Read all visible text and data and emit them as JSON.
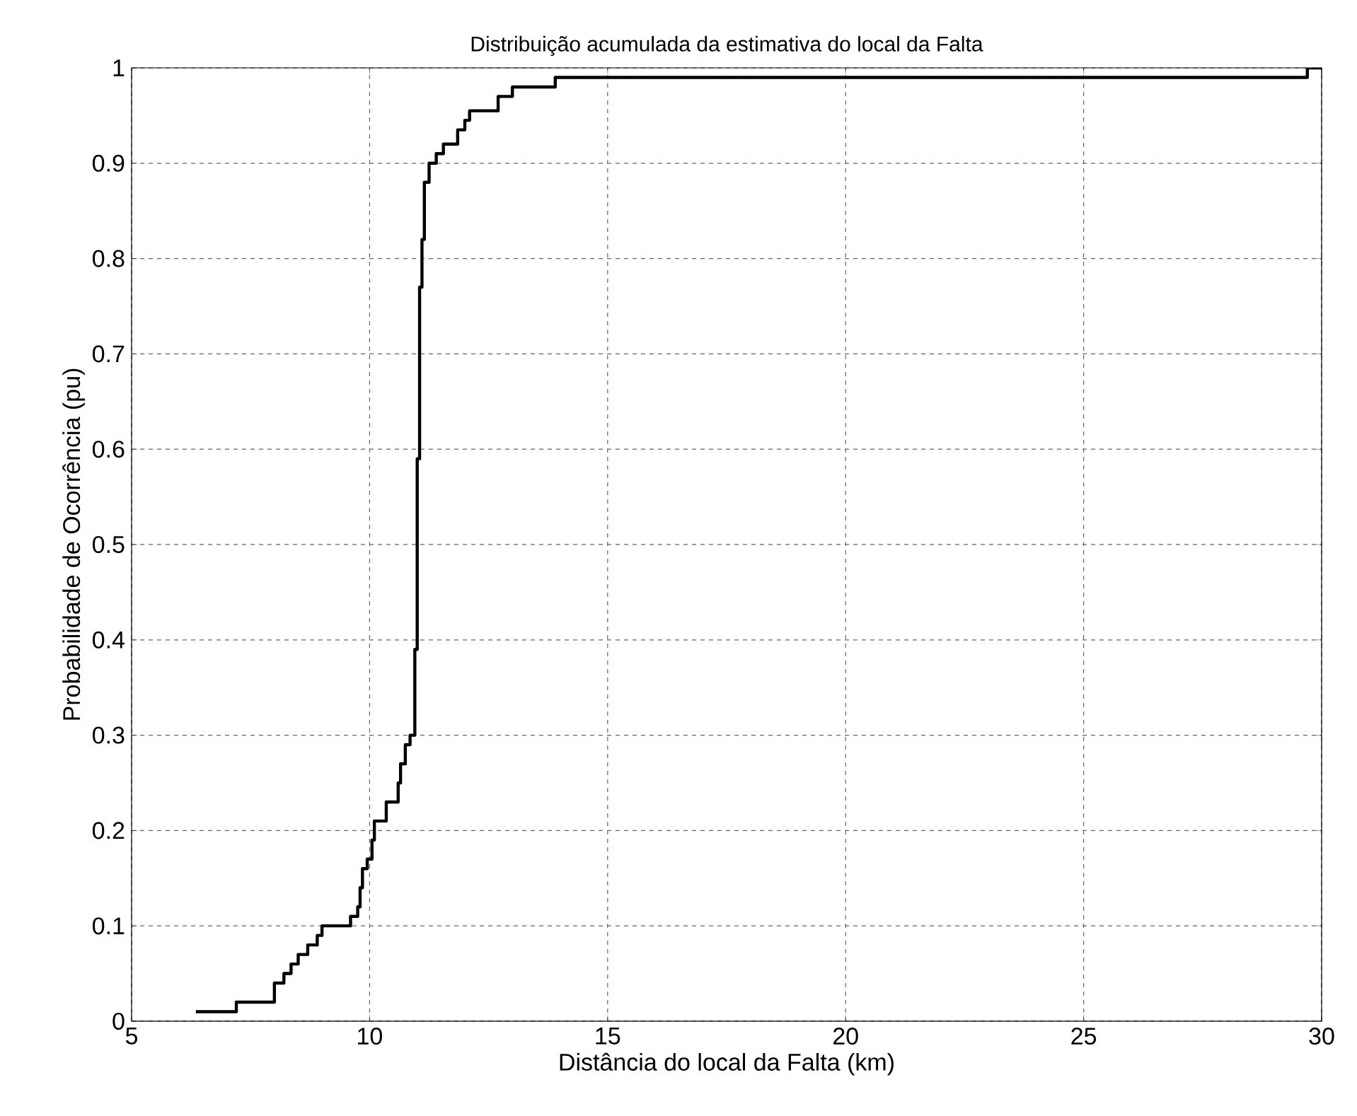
{
  "chart_data": {
    "type": "step",
    "title": "Distribuição acumulada da estimativa do local da Falta",
    "xlabel": "Distância do local da Falta (km)",
    "ylabel": "Probabilidade de Ocorrência (pu)",
    "x": [
      6.35,
      7.2,
      8.0,
      8.2,
      8.35,
      8.5,
      8.7,
      8.9,
      9.0,
      9.6,
      9.75,
      9.8,
      9.85,
      9.95,
      10.05,
      10.1,
      10.35,
      10.6,
      10.65,
      10.75,
      10.85,
      10.95,
      11.0,
      11.05,
      11.1,
      11.15,
      11.25,
      11.4,
      11.55,
      11.85,
      12.0,
      12.1,
      12.7,
      13.0,
      13.9,
      29.7,
      30
    ],
    "series": [
      {
        "color": "#000000",
        "values": [
          0.01,
          0.02,
          0.04,
          0.05,
          0.06,
          0.07,
          0.08,
          0.09,
          0.1,
          0.11,
          0.12,
          0.14,
          0.16,
          0.17,
          0.19,
          0.21,
          0.23,
          0.25,
          0.27,
          0.29,
          0.3,
          0.39,
          0.59,
          0.77,
          0.82,
          0.88,
          0.9,
          0.91,
          0.92,
          0.935,
          0.945,
          0.955,
          0.97,
          0.98,
          0.99,
          1.0,
          1.0
        ]
      }
    ],
    "xlim": [
      5,
      30
    ],
    "ylim": [
      0,
      1
    ],
    "xticks": [
      5,
      10,
      15,
      20,
      25,
      30
    ],
    "yticks": [
      0,
      0.1,
      0.2,
      0.3,
      0.4,
      0.5,
      0.6,
      0.7,
      0.8,
      0.9,
      1
    ],
    "grid": true,
    "line_style": "solid",
    "marker": "none"
  }
}
